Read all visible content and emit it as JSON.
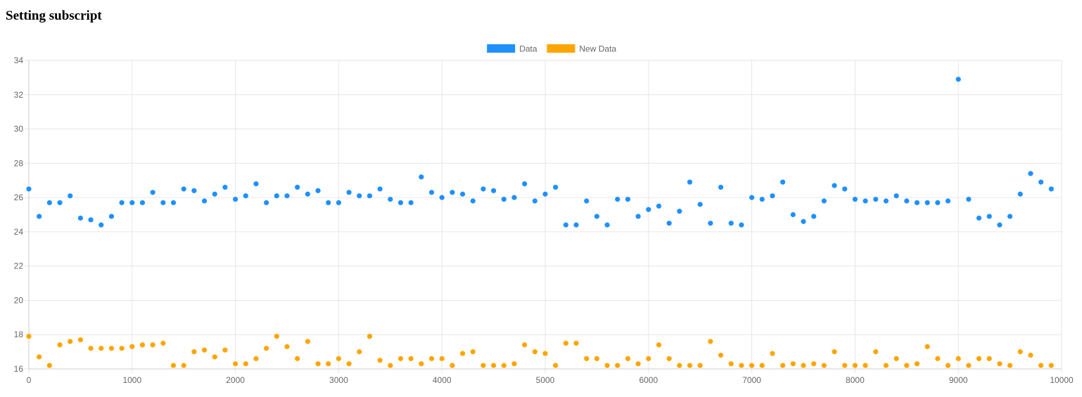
{
  "page": {
    "title": "Setting subscript"
  },
  "chart_data": {
    "type": "scatter",
    "title": "",
    "xlabel": "",
    "ylabel": "",
    "xlim": [
      0,
      10000
    ],
    "ylim": [
      16,
      34
    ],
    "x_ticks": [
      0,
      1000,
      2000,
      3000,
      4000,
      5000,
      6000,
      7000,
      8000,
      9000,
      10000
    ],
    "y_ticks": [
      16,
      18,
      20,
      22,
      24,
      26,
      28,
      30,
      32,
      34
    ],
    "grid": true,
    "legend_position": "top-center",
    "series": [
      {
        "name": "Data",
        "color": "#1e90ff",
        "points": [
          [
            0,
            26.5
          ],
          [
            100,
            24.9
          ],
          [
            200,
            25.7
          ],
          [
            300,
            25.7
          ],
          [
            400,
            26.1
          ],
          [
            500,
            24.8
          ],
          [
            600,
            24.7
          ],
          [
            700,
            24.4
          ],
          [
            800,
            24.9
          ],
          [
            900,
            25.7
          ],
          [
            1000,
            25.7
          ],
          [
            1100,
            25.7
          ],
          [
            1200,
            26.3
          ],
          [
            1300,
            25.7
          ],
          [
            1400,
            25.7
          ],
          [
            1500,
            26.5
          ],
          [
            1600,
            26.4
          ],
          [
            1700,
            25.8
          ],
          [
            1800,
            26.2
          ],
          [
            1900,
            26.6
          ],
          [
            2000,
            25.9
          ],
          [
            2100,
            26.1
          ],
          [
            2200,
            26.8
          ],
          [
            2300,
            25.7
          ],
          [
            2400,
            26.1
          ],
          [
            2500,
            26.1
          ],
          [
            2600,
            26.6
          ],
          [
            2700,
            26.2
          ],
          [
            2800,
            26.4
          ],
          [
            2900,
            25.7
          ],
          [
            3000,
            25.7
          ],
          [
            3100,
            26.3
          ],
          [
            3200,
            26.1
          ],
          [
            3300,
            26.1
          ],
          [
            3400,
            26.5
          ],
          [
            3500,
            25.9
          ],
          [
            3600,
            25.7
          ],
          [
            3700,
            25.7
          ],
          [
            3800,
            27.2
          ],
          [
            3900,
            26.3
          ],
          [
            4000,
            26.0
          ],
          [
            4100,
            26.3
          ],
          [
            4200,
            26.2
          ],
          [
            4300,
            25.8
          ],
          [
            4400,
            26.5
          ],
          [
            4500,
            26.4
          ],
          [
            4600,
            25.9
          ],
          [
            4700,
            26.0
          ],
          [
            4800,
            26.8
          ],
          [
            4900,
            25.8
          ],
          [
            5000,
            26.2
          ],
          [
            5100,
            26.6
          ],
          [
            5200,
            24.4
          ],
          [
            5300,
            24.4
          ],
          [
            5400,
            25.8
          ],
          [
            5500,
            24.9
          ],
          [
            5600,
            24.4
          ],
          [
            5700,
            25.9
          ],
          [
            5800,
            25.9
          ],
          [
            5900,
            24.9
          ],
          [
            6000,
            25.3
          ],
          [
            6100,
            25.5
          ],
          [
            6200,
            24.5
          ],
          [
            6300,
            25.2
          ],
          [
            6400,
            26.9
          ],
          [
            6500,
            25.6
          ],
          [
            6600,
            24.5
          ],
          [
            6700,
            26.6
          ],
          [
            6800,
            24.5
          ],
          [
            6900,
            24.4
          ],
          [
            7000,
            26.0
          ],
          [
            7100,
            25.9
          ],
          [
            7200,
            26.1
          ],
          [
            7300,
            26.9
          ],
          [
            7400,
            25.0
          ],
          [
            7500,
            24.6
          ],
          [
            7600,
            24.9
          ],
          [
            7700,
            25.8
          ],
          [
            7800,
            26.7
          ],
          [
            7900,
            26.5
          ],
          [
            8000,
            25.9
          ],
          [
            8100,
            25.8
          ],
          [
            8200,
            25.9
          ],
          [
            8300,
            25.8
          ],
          [
            8400,
            26.1
          ],
          [
            8500,
            25.8
          ],
          [
            8600,
            25.7
          ],
          [
            8700,
            25.7
          ],
          [
            8800,
            25.7
          ],
          [
            8900,
            25.8
          ],
          [
            9000,
            32.9
          ],
          [
            9100,
            25.9
          ],
          [
            9200,
            24.8
          ],
          [
            9300,
            24.9
          ],
          [
            9400,
            24.4
          ],
          [
            9500,
            24.9
          ],
          [
            9600,
            26.2
          ],
          [
            9700,
            27.4
          ],
          [
            9800,
            26.9
          ],
          [
            9900,
            26.5
          ]
        ]
      },
      {
        "name": "New Data",
        "color": "#ffa500",
        "points": [
          [
            0,
            17.9
          ],
          [
            100,
            16.7
          ],
          [
            200,
            16.2
          ],
          [
            300,
            17.4
          ],
          [
            400,
            17.6
          ],
          [
            500,
            17.7
          ],
          [
            600,
            17.2
          ],
          [
            700,
            17.2
          ],
          [
            800,
            17.2
          ],
          [
            900,
            17.2
          ],
          [
            1000,
            17.3
          ],
          [
            1100,
            17.4
          ],
          [
            1200,
            17.4
          ],
          [
            1300,
            17.5
          ],
          [
            1400,
            16.2
          ],
          [
            1500,
            16.2
          ],
          [
            1600,
            17.0
          ],
          [
            1700,
            17.1
          ],
          [
            1800,
            16.7
          ],
          [
            1900,
            17.1
          ],
          [
            2000,
            16.3
          ],
          [
            2100,
            16.3
          ],
          [
            2200,
            16.6
          ],
          [
            2300,
            17.2
          ],
          [
            2400,
            17.9
          ],
          [
            2500,
            17.3
          ],
          [
            2600,
            16.6
          ],
          [
            2700,
            17.6
          ],
          [
            2800,
            16.3
          ],
          [
            2900,
            16.3
          ],
          [
            3000,
            16.6
          ],
          [
            3100,
            16.3
          ],
          [
            3200,
            17.0
          ],
          [
            3300,
            17.9
          ],
          [
            3400,
            16.5
          ],
          [
            3500,
            16.2
          ],
          [
            3600,
            16.6
          ],
          [
            3700,
            16.6
          ],
          [
            3800,
            16.3
          ],
          [
            3900,
            16.6
          ],
          [
            4000,
            16.6
          ],
          [
            4100,
            16.2
          ],
          [
            4200,
            16.9
          ],
          [
            4300,
            17.0
          ],
          [
            4400,
            16.2
          ],
          [
            4500,
            16.2
          ],
          [
            4600,
            16.2
          ],
          [
            4700,
            16.3
          ],
          [
            4800,
            17.4
          ],
          [
            4900,
            17.0
          ],
          [
            5000,
            16.9
          ],
          [
            5100,
            16.2
          ],
          [
            5200,
            17.5
          ],
          [
            5300,
            17.5
          ],
          [
            5400,
            16.6
          ],
          [
            5500,
            16.6
          ],
          [
            5600,
            16.2
          ],
          [
            5700,
            16.2
          ],
          [
            5800,
            16.6
          ],
          [
            5900,
            16.3
          ],
          [
            6000,
            16.6
          ],
          [
            6100,
            17.4
          ],
          [
            6200,
            16.6
          ],
          [
            6300,
            16.2
          ],
          [
            6400,
            16.2
          ],
          [
            6500,
            16.2
          ],
          [
            6600,
            17.6
          ],
          [
            6700,
            16.8
          ],
          [
            6800,
            16.3
          ],
          [
            6900,
            16.2
          ],
          [
            7000,
            16.2
          ],
          [
            7100,
            16.2
          ],
          [
            7200,
            16.9
          ],
          [
            7300,
            16.2
          ],
          [
            7400,
            16.3
          ],
          [
            7500,
            16.2
          ],
          [
            7600,
            16.3
          ],
          [
            7700,
            16.2
          ],
          [
            7800,
            17.0
          ],
          [
            7900,
            16.2
          ],
          [
            8000,
            16.2
          ],
          [
            8100,
            16.2
          ],
          [
            8200,
            17.0
          ],
          [
            8300,
            16.2
          ],
          [
            8400,
            16.6
          ],
          [
            8500,
            16.2
          ],
          [
            8600,
            16.3
          ],
          [
            8700,
            17.3
          ],
          [
            8800,
            16.6
          ],
          [
            8900,
            16.2
          ],
          [
            9000,
            16.6
          ],
          [
            9100,
            16.2
          ],
          [
            9200,
            16.6
          ],
          [
            9300,
            16.6
          ],
          [
            9400,
            16.3
          ],
          [
            9500,
            16.2
          ],
          [
            9600,
            17.0
          ],
          [
            9700,
            16.8
          ],
          [
            9800,
            16.2
          ],
          [
            9900,
            16.2
          ]
        ]
      }
    ]
  }
}
